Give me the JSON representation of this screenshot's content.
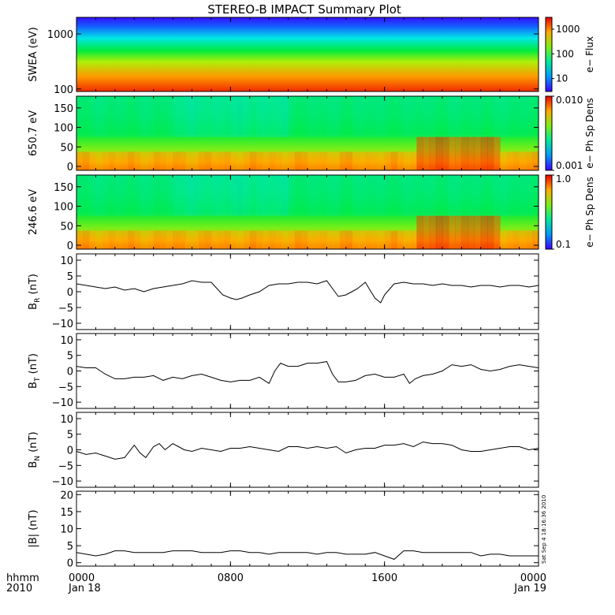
{
  "chart_data": {
    "type": "multi-panel",
    "title": "STEREO-B IMPACT Summary Plot",
    "x_axis": {
      "row1_label": "hhmm",
      "row2_label": "2010",
      "ticks": [
        {
          "hours": 0,
          "time": "0000",
          "date": "Jan 18"
        },
        {
          "hours": 8,
          "time": "0800",
          "date": ""
        },
        {
          "hours": 16,
          "time": "1600",
          "date": ""
        },
        {
          "hours": 24,
          "time": "0000",
          "date": "Jan 19"
        }
      ],
      "range_hours": [
        0,
        24
      ]
    },
    "side_stamp": "Sat Sep  4 18:16:36 2010",
    "panels": [
      {
        "id": "swea",
        "type": "heatmap",
        "ylabel": "SWEA (eV)",
        "yscale": "log",
        "ylim": [
          90,
          2000
        ],
        "yticks": [
          {
            "v": 100,
            "label": "100"
          },
          {
            "v": 1000,
            "label": "1000"
          }
        ],
        "colorbar_label": "e− Flux",
        "colorbar_scale": "log",
        "colorbar_range": [
          3,
          3000
        ],
        "colorbar_ticks": [
          {
            "v": 10,
            "label": "10"
          },
          {
            "v": 100,
            "label": "100"
          },
          {
            "v": 1000,
            "label": "1000"
          }
        ]
      },
      {
        "id": "pad650",
        "type": "heatmap",
        "ylabel": "650.7 eV",
        "ylim": [
          -10,
          180
        ],
        "yticks": [
          {
            "v": 0,
            "label": "0"
          },
          {
            "v": 50,
            "label": "50"
          },
          {
            "v": 100,
            "label": "100"
          },
          {
            "v": 150,
            "label": "150"
          }
        ],
        "colorbar_label": "e− Ph Sp Dens",
        "colorbar_scale": "log",
        "colorbar_range": [
          0.001,
          0.01
        ],
        "colorbar_ticks": [
          {
            "v": 0.001,
            "label": "0.001"
          },
          {
            "v": 0.01,
            "label": "0.010"
          }
        ]
      },
      {
        "id": "pad246",
        "type": "heatmap",
        "ylabel": "246.6 eV",
        "ylim": [
          -10,
          180
        ],
        "yticks": [
          {
            "v": 0,
            "label": "0"
          },
          {
            "v": 50,
            "label": "50"
          },
          {
            "v": 100,
            "label": "100"
          },
          {
            "v": 150,
            "label": "150"
          }
        ],
        "colorbar_label": "e− Ph Sp Dens",
        "colorbar_scale": "log",
        "colorbar_range": [
          0.1,
          1.0
        ],
        "colorbar_ticks": [
          {
            "v": 0.1,
            "label": "0.1"
          },
          {
            "v": 1.0,
            "label": "1.0"
          }
        ]
      },
      {
        "id": "br",
        "type": "line",
        "ylabel": "B",
        "ylabel_sub": "R",
        "ylabel_unit": " (nT)",
        "ylim": [
          -12,
          12
        ],
        "yticks": [
          {
            "v": -10,
            "label": "−10"
          },
          {
            "v": -5,
            "label": "−5"
          },
          {
            "v": 0,
            "label": "0"
          },
          {
            "v": 5,
            "label": "5"
          },
          {
            "v": 10,
            "label": "10"
          }
        ],
        "x": [
          0,
          0.5,
          1,
          1.5,
          2,
          2.5,
          3,
          3.5,
          4,
          4.5,
          5,
          5.5,
          6,
          6.5,
          7,
          7.3,
          7.6,
          8,
          8.3,
          8.6,
          9,
          9.5,
          10,
          10.5,
          11,
          11.5,
          12,
          12.5,
          13,
          13.3,
          13.6,
          14,
          14.3,
          14.6,
          15,
          15.2,
          15.5,
          15.8,
          16,
          16.5,
          17,
          17.5,
          18,
          18.5,
          19,
          19.5,
          20,
          20.5,
          21,
          21.5,
          22,
          22.5,
          23,
          23.5,
          24
        ],
        "values": [
          2.5,
          2,
          1.5,
          1,
          1.5,
          0.5,
          1,
          0,
          1,
          1.5,
          2,
          2.5,
          3.5,
          3,
          3,
          1,
          -1,
          -2,
          -2.5,
          -2,
          -1,
          0,
          2,
          2.5,
          2.5,
          3,
          3,
          2.5,
          3.5,
          1,
          -1.5,
          -1,
          0,
          1,
          3,
          1,
          -2,
          -3.5,
          -1,
          2.5,
          3,
          2.5,
          2.5,
          2,
          2.5,
          2,
          2,
          1.5,
          2,
          2,
          1.5,
          2,
          2,
          1.5,
          2
        ]
      },
      {
        "id": "bt",
        "type": "line",
        "ylabel": "B",
        "ylabel_sub": "T",
        "ylabel_unit": " (nT)",
        "ylim": [
          -12,
          12
        ],
        "yticks": [
          {
            "v": -10,
            "label": "−10"
          },
          {
            "v": -5,
            "label": "−5"
          },
          {
            "v": 0,
            "label": "0"
          },
          {
            "v": 5,
            "label": "5"
          },
          {
            "v": 10,
            "label": "10"
          }
        ],
        "x": [
          0,
          0.5,
          1,
          1.5,
          2,
          2.5,
          3,
          3.5,
          4,
          4.5,
          5,
          5.5,
          6,
          6.5,
          7,
          7.5,
          8,
          8.5,
          9,
          9.5,
          10,
          10.3,
          10.6,
          11,
          11.5,
          12,
          12.5,
          13,
          13.3,
          13.6,
          14,
          14.5,
          15,
          15.5,
          16,
          16.5,
          17,
          17.3,
          17.6,
          18,
          18.5,
          19,
          19.5,
          20,
          20.5,
          21,
          21.5,
          22,
          22.5,
          23,
          23.5,
          24
        ],
        "values": [
          1.5,
          1,
          1,
          -1,
          -2.5,
          -2.5,
          -2,
          -2,
          -1.5,
          -3,
          -2,
          -2.5,
          -1.5,
          -1,
          -2,
          -3,
          -3.5,
          -3,
          -3,
          -2,
          -4,
          0,
          2.5,
          1.5,
          1.5,
          2.5,
          2.5,
          3,
          -1,
          -3.5,
          -3.5,
          -3,
          -1.5,
          -1,
          -2,
          -2,
          -1,
          -4,
          -2.5,
          -1.5,
          -1,
          0,
          2,
          1.5,
          2,
          0.5,
          0,
          0.5,
          1.5,
          2,
          1.5,
          1
        ]
      },
      {
        "id": "bn",
        "type": "line",
        "ylabel": "B",
        "ylabel_sub": "N",
        "ylabel_unit": " (nT)",
        "ylim": [
          -12,
          12
        ],
        "yticks": [
          {
            "v": -10,
            "label": "−10"
          },
          {
            "v": -5,
            "label": "−5"
          },
          {
            "v": 0,
            "label": "0"
          },
          {
            "v": 5,
            "label": "5"
          },
          {
            "v": 10,
            "label": "10"
          }
        ],
        "x": [
          0,
          0.5,
          1,
          1.5,
          2,
          2.5,
          3,
          3.3,
          3.6,
          4,
          4.3,
          4.6,
          5,
          5.3,
          5.6,
          6,
          6.5,
          7,
          7.5,
          8,
          8.5,
          9,
          9.5,
          10,
          10.5,
          11,
          11.5,
          12,
          12.5,
          13,
          13.5,
          14,
          14.5,
          15,
          15.5,
          16,
          16.5,
          17,
          17.5,
          18,
          18.5,
          19,
          19.5,
          20,
          20.5,
          21,
          21.5,
          22,
          22.5,
          23,
          23.5,
          24
        ],
        "values": [
          -0.5,
          -1.5,
          -1,
          -2,
          -3,
          -2.5,
          1.5,
          -1,
          -2.5,
          1,
          2,
          0,
          2,
          1,
          0,
          -0.5,
          0.5,
          0,
          -0.5,
          0.5,
          0.5,
          1,
          0.5,
          0,
          -0.5,
          1,
          1,
          0.5,
          1,
          0.5,
          1,
          -1,
          0,
          0.5,
          0.5,
          1.5,
          1.5,
          2,
          1,
          2.5,
          2,
          2,
          1.5,
          0,
          -0.5,
          -0.5,
          0,
          0.5,
          1,
          1,
          0,
          0.5
        ]
      },
      {
        "id": "bmag",
        "type": "line",
        "ylabel": "|B| (nT)",
        "ylabel_sub": "",
        "ylabel_unit": "",
        "ylim": [
          -1,
          21
        ],
        "yticks": [
          {
            "v": 0,
            "label": "0"
          },
          {
            "v": 5,
            "label": "5"
          },
          {
            "v": 10,
            "label": "10"
          },
          {
            "v": 15,
            "label": "15"
          },
          {
            "v": 20,
            "label": "20"
          }
        ],
        "x": [
          0,
          0.5,
          1,
          1.5,
          2,
          2.5,
          3,
          3.5,
          4,
          4.5,
          5,
          5.5,
          6,
          6.5,
          7,
          7.5,
          8,
          8.5,
          9,
          9.5,
          10,
          10.5,
          11,
          11.5,
          12,
          12.5,
          13,
          13.5,
          14,
          14.5,
          15,
          15.5,
          16,
          16.5,
          17,
          17.5,
          18,
          18.5,
          19,
          19.5,
          20,
          20.5,
          21,
          21.5,
          22,
          22.5,
          23,
          23.5,
          24
        ],
        "values": [
          3,
          2.5,
          2,
          2.5,
          3.5,
          3.5,
          3,
          3,
          3,
          3,
          3.5,
          3.5,
          3.5,
          3,
          3,
          3,
          3.5,
          3.5,
          3,
          3,
          2.5,
          3,
          3,
          3,
          3,
          2.5,
          3,
          3,
          2.5,
          2.5,
          2.5,
          3,
          2,
          1,
          3.5,
          3.5,
          3,
          3,
          3,
          3,
          3,
          3,
          2,
          2.5,
          2.5,
          2,
          2,
          2,
          2
        ]
      }
    ]
  }
}
